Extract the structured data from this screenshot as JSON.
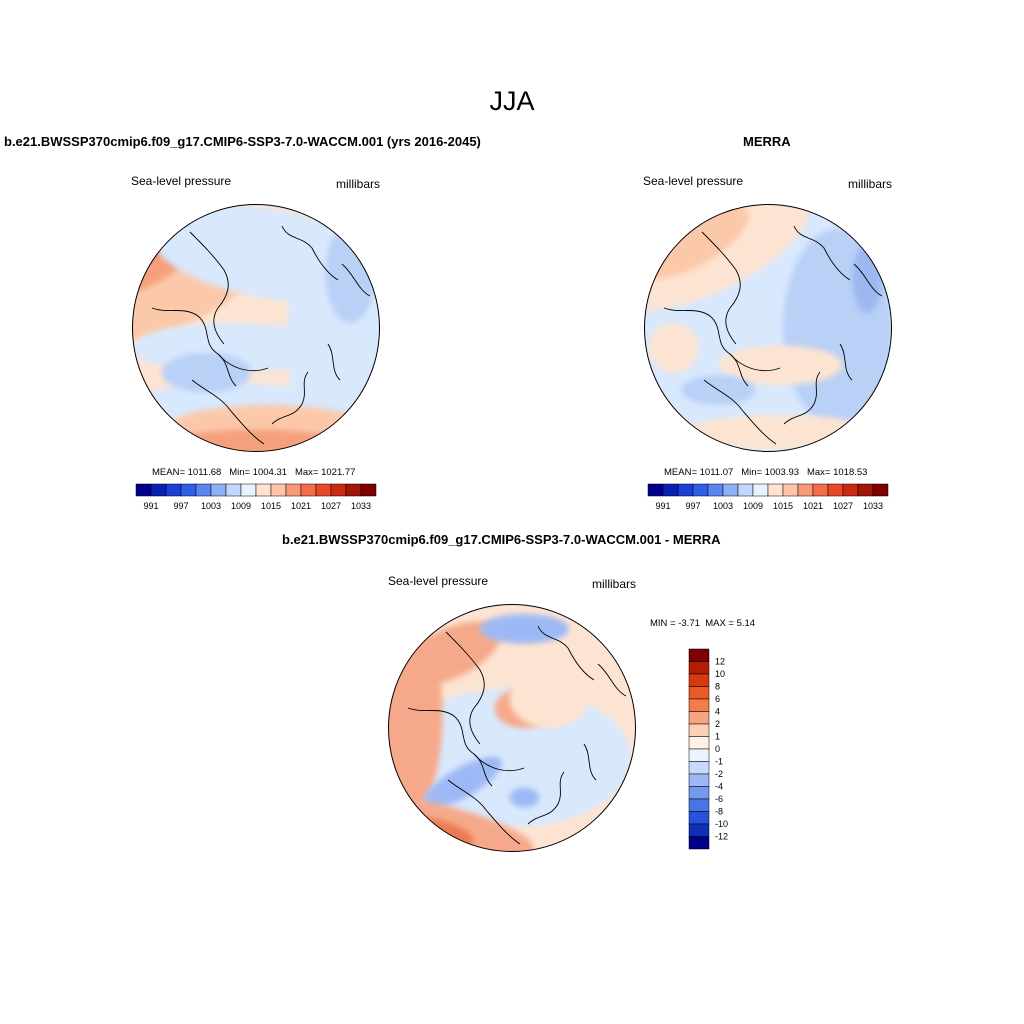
{
  "season": "JJA",
  "panels": {
    "model": {
      "title": "b.e21.BWSSP370cmip6.f09_g17.CMIP6-SSP3-7.0-WACCM.001 (yrs 2016-2045)",
      "variable": "Sea-level pressure",
      "units": "millibars",
      "stats": {
        "mean": "MEAN= 1011.68",
        "min": "Min= 1004.31",
        "max": "Max= 1021.77"
      }
    },
    "obs": {
      "title": "MERRA",
      "variable": "Sea-level pressure",
      "units": "millibars",
      "stats": {
        "mean": "MEAN= 1011.07",
        "min": "Min= 1003.93",
        "max": "Max= 1018.53"
      }
    },
    "diff": {
      "title": "b.e21.BWSSP370cmip6.f09_g17.CMIP6-SSP3-7.0-WACCM.001 - MERRA",
      "variable": "Sea-level pressure",
      "units": "millibars",
      "stats": {
        "min": "MIN =  -3.71",
        "max": "MAX =   5.14"
      }
    }
  },
  "colorbar_abs": {
    "colors": [
      "#00008b",
      "#0a20b4",
      "#1c3fd6",
      "#2d5fe8",
      "#5b86f0",
      "#8fb0f5",
      "#c3d7fb",
      "#eaf2ff",
      "#ffe3d2",
      "#ffc4a7",
      "#f89a78",
      "#f26d4b",
      "#e84a27",
      "#cc2a10",
      "#a61608",
      "#7e0000"
    ],
    "tick_labels": [
      "991",
      "997",
      "1003",
      "1009",
      "1015",
      "1021",
      "1027",
      "1033"
    ]
  },
  "colorbar_diff": {
    "colors": [
      "#7e0000",
      "#b01f04",
      "#d53a0f",
      "#ea5a26",
      "#f47c4c",
      "#f8a47e",
      "#fbd0b6",
      "#fff1e8",
      "#ecf2ff",
      "#c9d9fb",
      "#9db9f5",
      "#7298ef",
      "#4775e8",
      "#2752db",
      "#0f30b5",
      "#00008b"
    ],
    "tick_labels": [
      "12",
      "10",
      "8",
      "6",
      "4",
      "2",
      "1",
      "0",
      "-1",
      "-2",
      "-4",
      "-6",
      "-8",
      "-10",
      "-12"
    ]
  },
  "map_colors": {
    "model": {
      "bg": "#fde4d2",
      "features": [
        [
          "#fbc9aa",
          0.15,
          0.3,
          0.45,
          0.2,
          -25
        ],
        [
          "#f5a07c",
          0.1,
          0.2,
          0.25,
          0.1,
          -35
        ],
        [
          "#ee774f",
          0.08,
          0.15,
          0.12,
          0.06,
          -35
        ],
        [
          "#d8e8fd",
          0.55,
          0.2,
          0.48,
          0.18,
          10
        ],
        [
          "#d8e8fd",
          0.82,
          0.55,
          0.2,
          0.4,
          0
        ],
        [
          "#b9d0f7",
          0.88,
          0.28,
          0.1,
          0.2,
          0
        ],
        [
          "#d8e8fd",
          0.4,
          0.58,
          0.4,
          0.1,
          0
        ],
        [
          "#d8e8fd",
          0.4,
          0.8,
          0.38,
          0.08,
          0
        ],
        [
          "#b9d0f7",
          0.3,
          0.68,
          0.18,
          0.08,
          0
        ],
        [
          "#fbc9aa",
          0.55,
          0.9,
          0.4,
          0.09,
          0
        ],
        [
          "#f5a07c",
          0.5,
          0.96,
          0.35,
          0.05,
          0
        ]
      ]
    },
    "obs": {
      "bg": "#d8e8fd",
      "features": [
        [
          "#fde4d2",
          0.25,
          0.18,
          0.45,
          0.18,
          -25
        ],
        [
          "#fbc9aa",
          0.2,
          0.15,
          0.25,
          0.1,
          -30
        ],
        [
          "#b9d0f7",
          0.78,
          0.5,
          0.22,
          0.4,
          0
        ],
        [
          "#9db8f1",
          0.9,
          0.3,
          0.06,
          0.14,
          0
        ],
        [
          "#fde4d2",
          0.12,
          0.58,
          0.1,
          0.1,
          0
        ],
        [
          "#fde4d2",
          0.55,
          0.65,
          0.25,
          0.08,
          0
        ],
        [
          "#fde4d2",
          0.55,
          0.92,
          0.38,
          0.07,
          0
        ],
        [
          "#b9d0f7",
          0.3,
          0.75,
          0.15,
          0.06,
          0
        ]
      ]
    },
    "diff": {
      "bg": "#fde4d2",
      "features": [
        [
          "#d8e8fd",
          0.5,
          0.62,
          0.48,
          0.28,
          0
        ],
        [
          "#f6a98a",
          0.1,
          0.45,
          0.12,
          0.38,
          0
        ],
        [
          "#f6a98a",
          0.25,
          0.2,
          0.22,
          0.1,
          -25
        ],
        [
          "#f6a98a",
          0.55,
          0.42,
          0.12,
          0.08,
          0
        ],
        [
          "#9db9f5",
          0.55,
          0.1,
          0.18,
          0.06,
          0
        ],
        [
          "#9db9f5",
          0.3,
          0.72,
          0.18,
          0.06,
          -30
        ],
        [
          "#9db9f5",
          0.55,
          0.78,
          0.06,
          0.04,
          0
        ],
        [
          "#f6a98a",
          0.25,
          0.9,
          0.35,
          0.08,
          15
        ],
        [
          "#ec7a52",
          0.2,
          0.92,
          0.15,
          0.05,
          15
        ],
        [
          "#fde4d2",
          0.65,
          0.38,
          0.16,
          0.12,
          0
        ]
      ]
    }
  }
}
